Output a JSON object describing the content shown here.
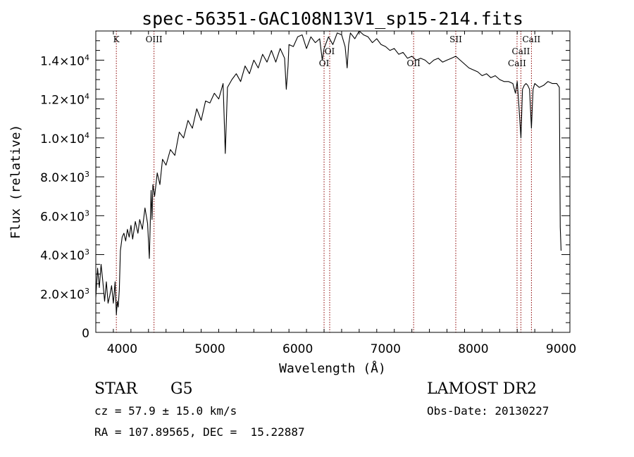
{
  "chart_data": {
    "type": "line",
    "title": "spec-56351-GAC108N13V1_sp15-214.fits",
    "xlabel": "Wavelength (Å)",
    "ylabel": "Flux (relative)",
    "xlim": [
      3700,
      9100
    ],
    "ylim": [
      0,
      15500
    ],
    "grid": false,
    "x_ticks": [
      {
        "value": 4000,
        "label": "4000"
      },
      {
        "value": 5000,
        "label": "5000"
      },
      {
        "value": 6000,
        "label": "6000"
      },
      {
        "value": 7000,
        "label": "7000"
      },
      {
        "value": 8000,
        "label": "8000"
      },
      {
        "value": 9000,
        "label": "9000"
      }
    ],
    "y_ticks": [
      {
        "value": 0,
        "mant": "0",
        "exp": ""
      },
      {
        "value": 2000,
        "mant": "2.0×10",
        "exp": "3"
      },
      {
        "value": 4000,
        "mant": "4.0×10",
        "exp": "3"
      },
      {
        "value": 6000,
        "mant": "6.0×10",
        "exp": "3"
      },
      {
        "value": 8000,
        "mant": "8.0×10",
        "exp": "3"
      },
      {
        "value": 10000,
        "mant": "1.0×10",
        "exp": "4"
      },
      {
        "value": 12000,
        "mant": "1.2×10",
        "exp": "4"
      },
      {
        "value": 14000,
        "mant": "1.4×10",
        "exp": "4"
      }
    ],
    "line_color": "#000000",
    "marker_color": "#8b0000",
    "spectrum": {
      "x": [
        3700,
        3720,
        3740,
        3760,
        3780,
        3800,
        3820,
        3840,
        3860,
        3880,
        3900,
        3920,
        3934,
        3945,
        3955,
        3968,
        3980,
        4000,
        4020,
        4040,
        4060,
        4080,
        4100,
        4120,
        4150,
        4180,
        4200,
        4230,
        4260,
        4290,
        4310,
        4330,
        4340,
        4350,
        4370,
        4400,
        4430,
        4460,
        4500,
        4550,
        4600,
        4650,
        4700,
        4750,
        4800,
        4850,
        4900,
        4950,
        5000,
        5050,
        5100,
        5150,
        5175,
        5200,
        5250,
        5300,
        5350,
        5400,
        5450,
        5500,
        5550,
        5600,
        5650,
        5700,
        5750,
        5800,
        5850,
        5870,
        5890,
        5900,
        5950,
        6000,
        6050,
        6100,
        6150,
        6200,
        6250,
        6280,
        6300,
        6350,
        6400,
        6450,
        6500,
        6540,
        6563,
        6580,
        6600,
        6650,
        6700,
        6750,
        6800,
        6850,
        6900,
        6950,
        7000,
        7050,
        7100,
        7150,
        7200,
        7250,
        7300,
        7350,
        7400,
        7450,
        7500,
        7550,
        7600,
        7650,
        7700,
        7750,
        7800,
        7850,
        7900,
        7950,
        8000,
        8050,
        8100,
        8150,
        8200,
        8250,
        8300,
        8350,
        8400,
        8450,
        8480,
        8500,
        8520,
        8542,
        8560,
        8580,
        8600,
        8620,
        8640,
        8662,
        8680,
        8700,
        8750,
        8800,
        8850,
        8900,
        8950,
        8980,
        8990,
        9000
      ],
      "y": [
        1800,
        3300,
        2300,
        3500,
        2600,
        1600,
        2600,
        1500,
        1900,
        2400,
        1500,
        2600,
        900,
        1600,
        1300,
        2200,
        4200,
        4900,
        5100,
        4700,
        5300,
        4900,
        5500,
        4800,
        5700,
        5100,
        5800,
        5300,
        6400,
        5600,
        3800,
        7300,
        5800,
        7600,
        7000,
        8200,
        7600,
        8900,
        8600,
        9400,
        9100,
        10300,
        10000,
        10900,
        10500,
        11500,
        10900,
        11900,
        11800,
        12300,
        12000,
        12800,
        9200,
        12600,
        13000,
        13300,
        12900,
        13700,
        13300,
        14000,
        13600,
        14300,
        13900,
        14500,
        13900,
        14600,
        14100,
        12500,
        13700,
        14800,
        14700,
        15200,
        15300,
        14600,
        15200,
        14900,
        15100,
        14000,
        14600,
        15200,
        14800,
        15400,
        15300,
        14700,
        13600,
        14800,
        15400,
        15100,
        15500,
        15300,
        15200,
        14900,
        15100,
        14800,
        14700,
        14500,
        14600,
        14300,
        14400,
        14100,
        14200,
        14000,
        14100,
        14000,
        13800,
        14000,
        14100,
        13900,
        14000,
        14100,
        14200,
        14000,
        13800,
        13600,
        13500,
        13400,
        13200,
        13300,
        13100,
        13200,
        13000,
        12900,
        12900,
        12800,
        12300,
        12900,
        11600,
        10000,
        12500,
        12700,
        12800,
        12700,
        12500,
        10500,
        12500,
        12800,
        12600,
        12700,
        12900,
        12800,
        12800,
        12600,
        5400,
        4200
      ]
    },
    "line_markers": [
      {
        "label": "K",
        "x": 3934,
        "label_row": 0
      },
      {
        "label": "OIII",
        "x": 4363,
        "label_row": 0
      },
      {
        "label": "OI",
        "x": 6300,
        "label_row": 2
      },
      {
        "label": "OI",
        "x": 6364,
        "label_row": 1
      },
      {
        "label": "OII",
        "x": 7320,
        "label_row": 2
      },
      {
        "label": "SII",
        "x": 7800,
        "label_row": 0
      },
      {
        "label": "CaII",
        "x": 8498,
        "label_row": 2
      },
      {
        "label": "CaII",
        "x": 8542,
        "label_row": 1
      },
      {
        "label": "CaII",
        "x": 8662,
        "label_row": 0
      }
    ]
  },
  "info": {
    "object_class": "STAR",
    "subclass": "G5",
    "survey": "LAMOST DR2",
    "redshift_text": "cz = 57.9 ± 15.0 km/s",
    "obs_date_text": "Obs-Date: 20130227",
    "coords_text": "RA = 107.89565, DEC =  15.22887"
  }
}
